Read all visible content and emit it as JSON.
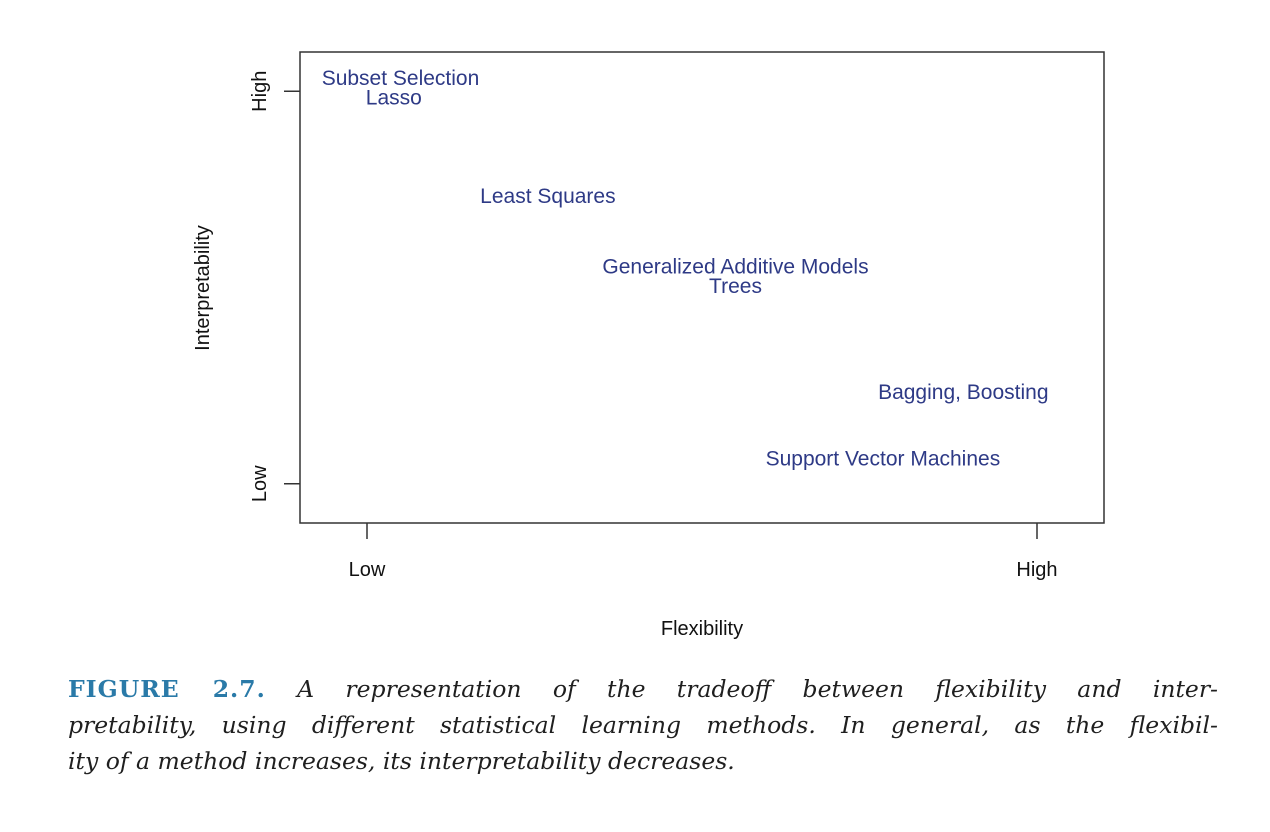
{
  "chart_data": {
    "type": "scatter",
    "title": "",
    "xlabel": "Flexibility",
    "ylabel": "Interpretability",
    "x_ticks": [
      {
        "value": 0,
        "label": "Low"
      },
      {
        "value": 1,
        "label": "High"
      }
    ],
    "y_ticks": [
      {
        "value": 0,
        "label": "Low"
      },
      {
        "value": 1,
        "label": "High"
      }
    ],
    "xlim": [
      -0.1,
      1.1
    ],
    "ylim": [
      -0.1,
      1.1
    ],
    "grid": false,
    "text_color": "#2e3a86",
    "points": [
      {
        "label": "Subset Selection",
        "x": 0.05,
        "y": 1.03
      },
      {
        "label": "Lasso",
        "x": 0.04,
        "y": 0.98
      },
      {
        "label": "Least Squares",
        "x": 0.27,
        "y": 0.73
      },
      {
        "label": "Generalized Additive Models",
        "x": 0.55,
        "y": 0.55
      },
      {
        "label": "Trees",
        "x": 0.55,
        "y": 0.5
      },
      {
        "label": "Bagging, Boosting",
        "x": 0.89,
        "y": 0.23
      },
      {
        "label": "Support Vector Machines",
        "x": 0.77,
        "y": 0.06
      }
    ]
  },
  "caption": {
    "label": "FIGURE 2.7.",
    "line1": "A representation of the tradeoff between flexibility and inter-",
    "line2": "pretability, using different statistical learning methods. In general, as the flexibil-",
    "line3": "ity of a method increases, its interpretability decreases."
  }
}
